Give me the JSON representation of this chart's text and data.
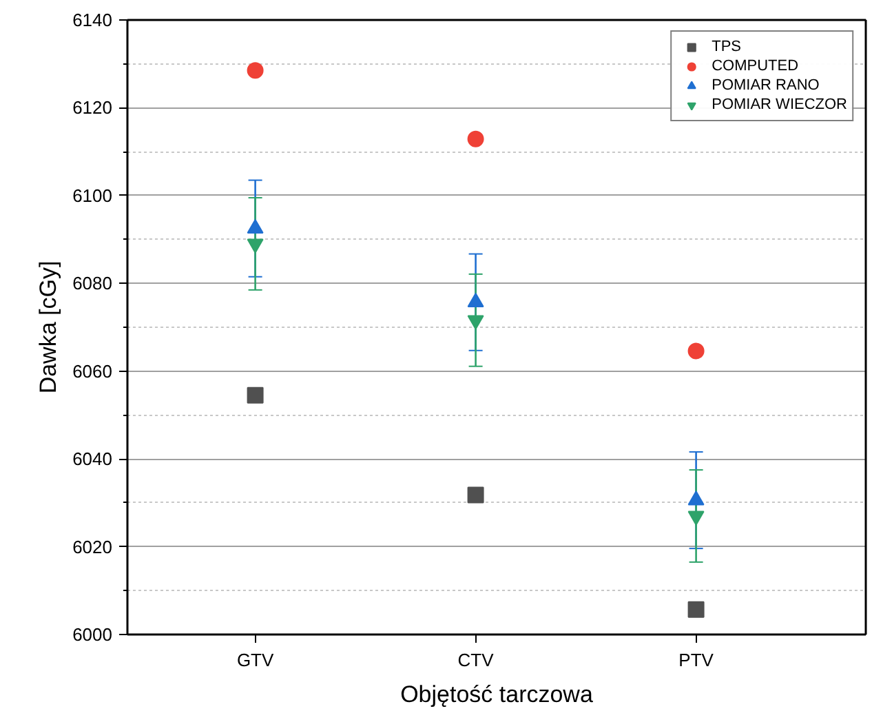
{
  "chart_data": {
    "type": "scatter",
    "xlabel": "Objętość tarczowa",
    "ylabel": "Dawka [cGy]",
    "categories": [
      "GTV",
      "CTV",
      "PTV"
    ],
    "series": [
      {
        "name": "TPS",
        "color": "#505050",
        "marker": "square",
        "values": [
          6054.5,
          6031.8,
          6005.7
        ]
      },
      {
        "name": "COMPUTED",
        "color": "#ef4136",
        "marker": "circle",
        "values": [
          6128.5,
          6112.9,
          6064.6
        ]
      },
      {
        "name": "POMIAR RANO",
        "color": "#1f6fd1",
        "marker": "triangle",
        "values": [
          6092.5,
          6075.7,
          6030.6
        ],
        "errors": [
          11,
          11,
          11
        ]
      },
      {
        "name": "POMIAR WIECZOR",
        "color": "#2ea36a",
        "marker": "triangle",
        "values": [
          6089,
          6071.6,
          6027
        ],
        "errors": [
          10.5,
          10.5,
          10.5
        ]
      }
    ],
    "ylim": [
      6000,
      6140
    ],
    "yticks": [
      6000,
      {
        "value": 6010,
        "label": null
      },
      6020,
      {
        "value": 6030,
        "label": null
      },
      6040,
      {
        "value": 6050,
        "label": null
      },
      6060,
      {
        "value": 6070,
        "label": null
      },
      6080,
      {
        "value": 6090,
        "label": null
      },
      6100,
      {
        "value": 6110,
        "label": null
      },
      6120,
      {
        "value": 6130,
        "label": null
      },
      6140
    ],
    "grid": "y",
    "legend": "top right"
  }
}
